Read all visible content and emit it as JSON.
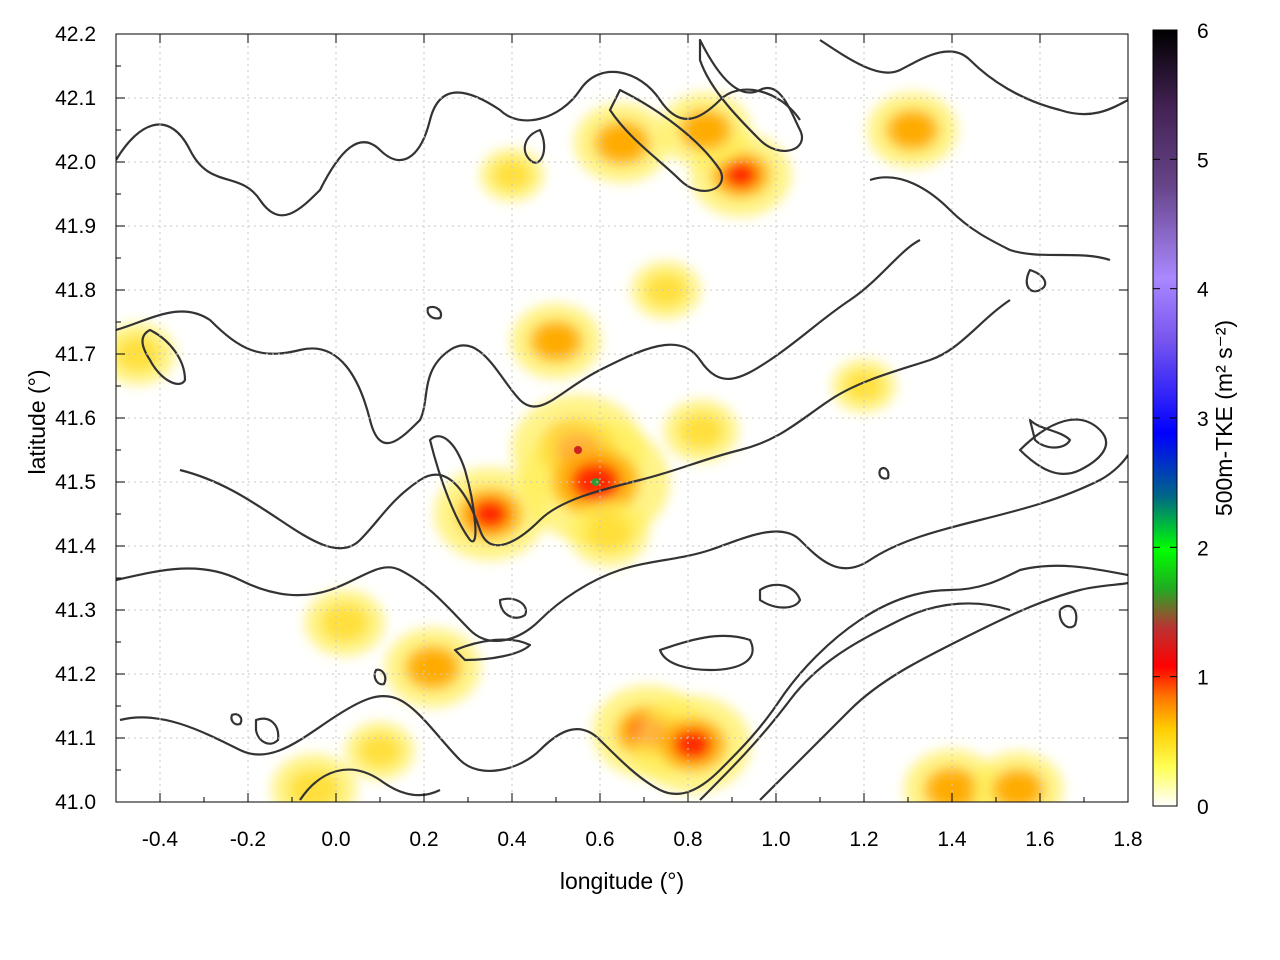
{
  "chart_data": {
    "type": "heatmap",
    "title": "",
    "xlabel": "longitude (°)",
    "ylabel": "latitude (°)",
    "xlim": [
      -0.5,
      1.8
    ],
    "ylim": [
      41.0,
      42.2
    ],
    "x_ticks": [
      "-0.4",
      "-0.2",
      "0.0",
      "0.2",
      "0.4",
      "0.6",
      "0.8",
      "1.0",
      "1.2",
      "1.4",
      "1.6",
      "1.8"
    ],
    "y_ticks": [
      "41.0",
      "41.1",
      "41.2",
      "41.3",
      "41.4",
      "41.5",
      "41.6",
      "41.7",
      "41.8",
      "41.9",
      "42.0",
      "42.1",
      "42.2"
    ],
    "grid": true,
    "colorbar": {
      "label": "500m-TKE (m² s⁻²)",
      "range": [
        0,
        6
      ],
      "ticks": [
        "0",
        "1",
        "2",
        "3",
        "4",
        "5",
        "6"
      ],
      "colors": [
        "#ffffff",
        "#ffff00",
        "#ff9900",
        "#ff0000",
        "#cc2222",
        "#22aa22",
        "#00ff00",
        "#0000ff",
        "#aa88ff",
        "#660099",
        "#000000"
      ]
    },
    "hotspots": [
      {
        "lon": 0.55,
        "lat": 41.55,
        "tke": 1.6
      },
      {
        "lon": 0.59,
        "lat": 41.5,
        "tke": 1.9
      },
      {
        "lon": 0.35,
        "lat": 41.45,
        "tke": 1.2
      },
      {
        "lon": 0.5,
        "lat": 41.72,
        "tke": 0.8
      },
      {
        "lon": 0.71,
        "lat": 41.11,
        "tke": 1.2
      },
      {
        "lon": 0.81,
        "lat": 41.09,
        "tke": 1.3
      },
      {
        "lon": 0.22,
        "lat": 41.21,
        "tke": 0.9
      },
      {
        "lon": 0.02,
        "lat": 41.28,
        "tke": 0.6
      },
      {
        "lon": 1.31,
        "lat": 42.05,
        "tke": 0.8
      },
      {
        "lon": 0.92,
        "lat": 41.98,
        "tke": 1.0
      },
      {
        "lon": 0.65,
        "lat": 42.03,
        "tke": 0.9
      },
      {
        "lon": 0.84,
        "lat": 42.05,
        "tke": 0.8
      },
      {
        "lon": 0.83,
        "lat": 41.58,
        "tke": 0.5
      },
      {
        "lon": 1.4,
        "lat": 41.02,
        "tke": 0.9
      },
      {
        "lon": 1.55,
        "lat": 41.02,
        "tke": 0.8
      },
      {
        "lon": -0.45,
        "lat": 41.7,
        "tke": 0.5
      },
      {
        "lon": 0.75,
        "lat": 41.8,
        "tke": 0.4
      },
      {
        "lon": 1.2,
        "lat": 41.65,
        "tke": 0.3
      },
      {
        "lon": 0.1,
        "lat": 41.08,
        "tke": 0.4
      },
      {
        "lon": -0.05,
        "lat": 41.02,
        "tke": 0.7
      },
      {
        "lon": 0.4,
        "lat": 41.98,
        "tke": 0.3
      },
      {
        "lon": 0.62,
        "lat": 41.42,
        "tke": 0.6
      }
    ]
  }
}
